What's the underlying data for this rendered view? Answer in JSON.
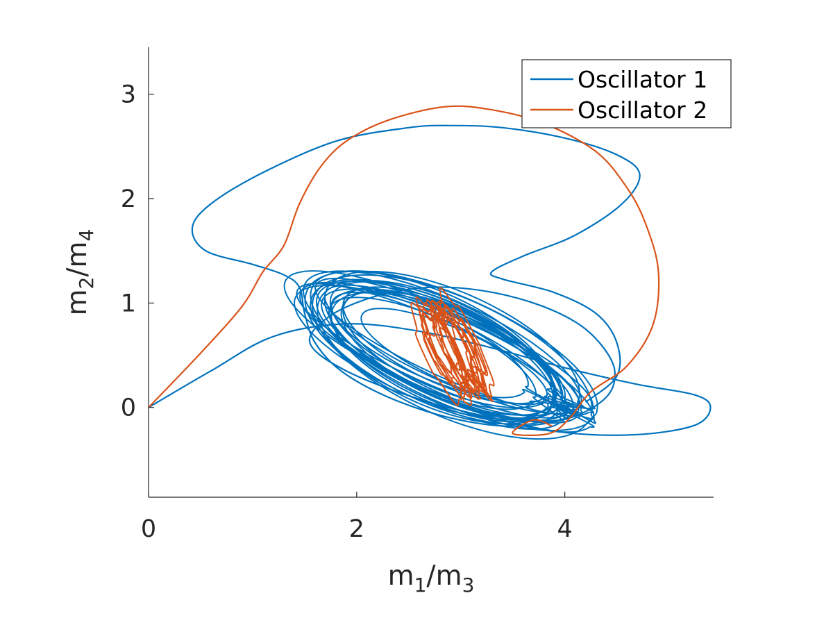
{
  "chart_data": {
    "type": "line",
    "xlabel": {
      "base1": "m",
      "sub1": "1",
      "sep": "/",
      "base2": "m",
      "sub2": "3"
    },
    "ylabel": {
      "base1": "m",
      "sub1": "2",
      "sep": "/",
      "base2": "m",
      "sub2": "4"
    },
    "xlim": [
      0,
      5.43
    ],
    "ylim": [
      -0.86,
      3.45
    ],
    "x_ticks": [
      0,
      2,
      4
    ],
    "y_ticks": [
      0,
      1,
      2,
      3
    ],
    "x_tick_labels": [
      "0",
      "2",
      "4"
    ],
    "y_tick_labels": [
      "0",
      "1",
      "2",
      "3"
    ],
    "grid": false,
    "legend_position": "top-right",
    "series": [
      {
        "name": "Oscillator 1",
        "color": "#0072BD",
        "transient": [
          [
            0,
            0
          ],
          [
            0.6,
            0.35
          ],
          [
            1.2,
            0.68
          ],
          [
            1.9,
            0.8
          ],
          [
            2.6,
            0.73
          ],
          [
            3.3,
            0.57
          ],
          [
            4.0,
            0.38
          ],
          [
            4.7,
            0.22
          ],
          [
            5.25,
            0.12
          ],
          [
            5.4,
            0.0
          ],
          [
            5.25,
            -0.17
          ],
          [
            4.7,
            -0.26
          ],
          [
            4.0,
            -0.24
          ],
          [
            3.3,
            -0.1
          ],
          [
            2.6,
            0.08
          ],
          [
            1.9,
            0.35
          ],
          [
            1.55,
            0.62
          ],
          [
            1.75,
            0.88
          ],
          [
            2.2,
            1.07
          ],
          [
            2.7,
            1.15
          ],
          [
            3.2,
            1.12
          ],
          [
            3.7,
            1.0
          ],
          [
            4.1,
            0.82
          ],
          [
            4.35,
            0.6
          ],
          [
            4.48,
            0.35
          ],
          [
            4.4,
            0.1
          ],
          [
            4.05,
            -0.1
          ],
          [
            3.5,
            -0.18
          ],
          [
            2.9,
            -0.1
          ],
          [
            2.3,
            0.1
          ],
          [
            1.85,
            0.35
          ],
          [
            1.6,
            0.62
          ],
          [
            1.5,
            0.9
          ],
          [
            1.45,
            1.15
          ],
          [
            1.3,
            1.27
          ],
          [
            1.0,
            1.37
          ],
          [
            0.55,
            1.5
          ],
          [
            0.42,
            1.72
          ],
          [
            0.6,
            1.95
          ],
          [
            1.1,
            2.25
          ],
          [
            1.8,
            2.55
          ],
          [
            2.5,
            2.68
          ],
          [
            2.9,
            2.7
          ],
          [
            3.4,
            2.68
          ],
          [
            4.0,
            2.58
          ],
          [
            4.5,
            2.42
          ],
          [
            4.72,
            2.23
          ],
          [
            4.55,
            1.95
          ],
          [
            4.1,
            1.65
          ],
          [
            3.6,
            1.45
          ],
          [
            3.3,
            1.3
          ],
          [
            3.4,
            1.23
          ],
          [
            3.9,
            1.1
          ],
          [
            4.3,
            0.9
          ],
          [
            4.5,
            0.62
          ],
          [
            4.5,
            0.3
          ],
          [
            4.2,
            0.05
          ]
        ],
        "attractor": {
          "cx": 2.82,
          "cy": 0.54,
          "rx_range": [
            0.95,
            1.6
          ],
          "ry_range": [
            0.24,
            0.58
          ],
          "tilt_deg": 24,
          "loops": 24
        }
      },
      {
        "name": "Oscillator 2",
        "color": "#D95319",
        "transient": [
          [
            0,
            0
          ],
          [
            0.5,
            0.52
          ],
          [
            0.9,
            0.97
          ],
          [
            1.1,
            1.3
          ],
          [
            1.3,
            1.55
          ],
          [
            1.45,
            1.95
          ],
          [
            1.65,
            2.3
          ],
          [
            1.9,
            2.55
          ],
          [
            2.3,
            2.75
          ],
          [
            2.85,
            2.88
          ],
          [
            3.3,
            2.85
          ],
          [
            3.8,
            2.72
          ],
          [
            4.3,
            2.45
          ],
          [
            4.6,
            2.1
          ],
          [
            4.78,
            1.75
          ],
          [
            4.9,
            1.3
          ],
          [
            4.85,
            0.8
          ],
          [
            4.6,
            0.4
          ],
          [
            4.25,
            0.15
          ],
          [
            4.05,
            -0.1
          ],
          [
            3.85,
            -0.25
          ],
          [
            3.5,
            -0.25
          ],
          [
            3.7,
            -0.12
          ],
          [
            3.88,
            -0.18
          ]
        ],
        "attractor": {
          "cx": 2.93,
          "cy": 0.57,
          "rx_range": [
            0.22,
            0.58
          ],
          "ry_range": [
            0.08,
            0.18
          ],
          "tilt_deg": 64,
          "loops": 14
        }
      }
    ]
  }
}
